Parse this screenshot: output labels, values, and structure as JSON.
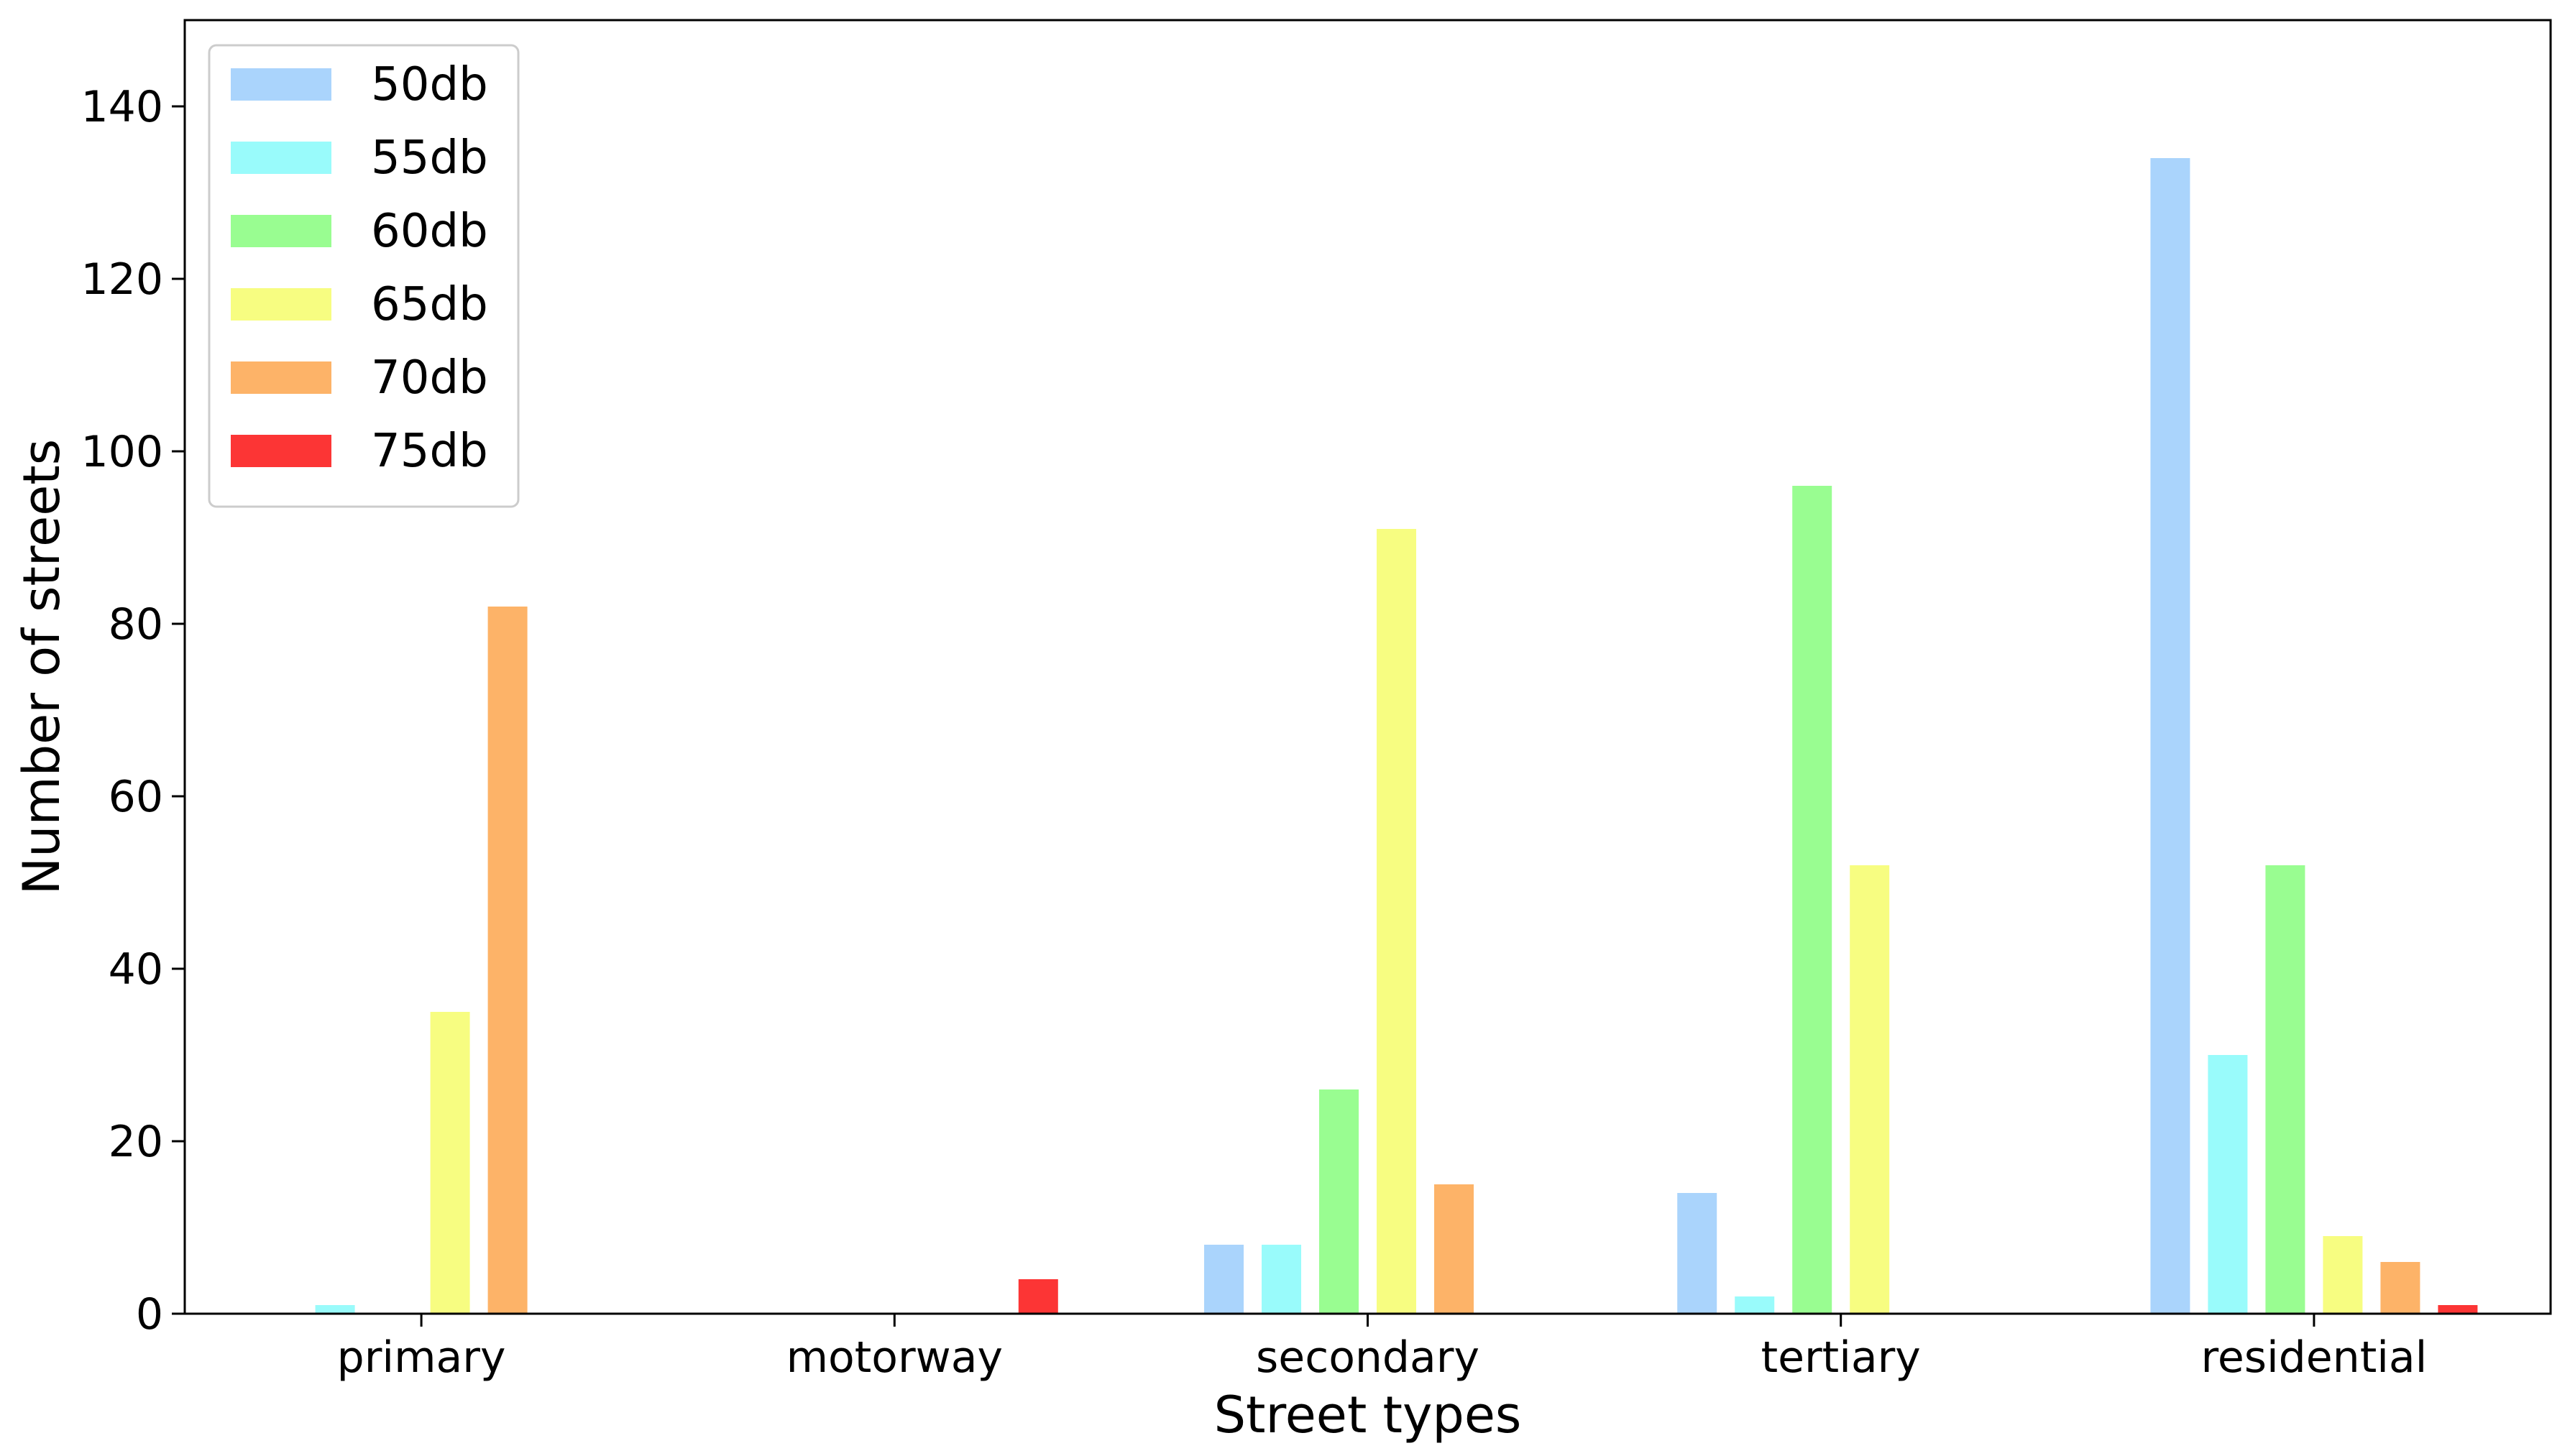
{
  "chart_data": {
    "type": "bar",
    "xlabel": "Street types",
    "ylabel": "Number of streets",
    "categories": [
      "primary",
      "motorway",
      "secondary",
      "tertiary",
      "residential"
    ],
    "ylim": [
      0,
      150
    ],
    "yticks": [
      0,
      20,
      40,
      60,
      80,
      100,
      120,
      140
    ],
    "grid": false,
    "legend": "top-left",
    "series": [
      {
        "name": "50db",
        "color": "#aad4fc",
        "values": [
          0,
          0,
          8,
          14,
          134
        ]
      },
      {
        "name": "55db",
        "color": "#99fbfb",
        "values": [
          1,
          0,
          8,
          2,
          30
        ]
      },
      {
        "name": "60db",
        "color": "#99fd91",
        "values": [
          0,
          0,
          26,
          96,
          52
        ]
      },
      {
        "name": "65db",
        "color": "#f7fd81",
        "values": [
          35,
          0,
          91,
          52,
          9
        ]
      },
      {
        "name": "70db",
        "color": "#fdb368",
        "values": [
          82,
          0,
          15,
          0,
          6
        ]
      },
      {
        "name": "75db",
        "color": "#fc3535",
        "values": [
          0,
          4,
          0,
          0,
          1
        ]
      }
    ]
  }
}
